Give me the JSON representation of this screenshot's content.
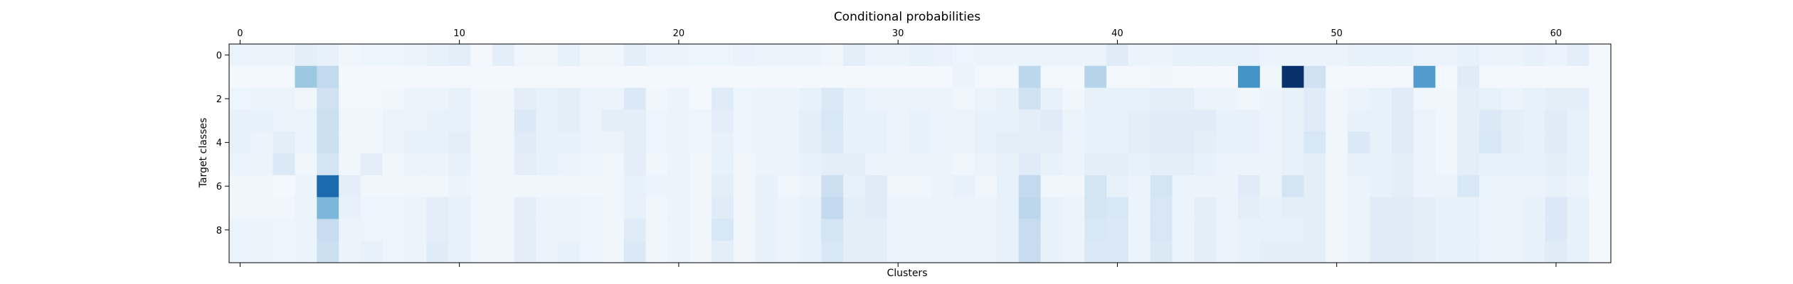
{
  "chart_data": {
    "type": "heatmap",
    "title": "Conditional probabilities",
    "xlabel": "Clusters",
    "ylabel": "Target classes",
    "n_rows": 10,
    "n_cols": 63,
    "x_ticks": [
      0,
      10,
      20,
      30,
      40,
      50,
      60
    ],
    "y_ticks": [
      0,
      2,
      4,
      6,
      8
    ],
    "x_tick_position": "top",
    "colormap": "Blues",
    "value_range": [
      0,
      1
    ],
    "grid": false,
    "values": [
      [
        0.06,
        0.06,
        0.06,
        0.1,
        0.08,
        0.04,
        0.05,
        0.05,
        0.06,
        0.08,
        0.1,
        0.03,
        0.1,
        0.04,
        0.04,
        0.08,
        0.04,
        0.04,
        0.1,
        0.06,
        0.06,
        0.05,
        0.05,
        0.07,
        0.06,
        0.06,
        0.06,
        0.04,
        0.1,
        0.06,
        0.06,
        0.08,
        0.07,
        0.05,
        0.06,
        0.06,
        0.06,
        0.06,
        0.06,
        0.06,
        0.12,
        0.06,
        0.06,
        0.08,
        0.08,
        0.08,
        0.08,
        0.06,
        0.06,
        0.06,
        0.06,
        0.08,
        0.08,
        0.08,
        0.06,
        0.06,
        0.08,
        0.06,
        0.06,
        0.08,
        0.06,
        0.1,
        0.02
      ],
      [
        0.02,
        0.02,
        0.02,
        0.38,
        0.26,
        0.02,
        0.02,
        0.02,
        0.02,
        0.02,
        0.02,
        0.02,
        0.02,
        0.02,
        0.02,
        0.02,
        0.02,
        0.02,
        0.02,
        0.02,
        0.02,
        0.02,
        0.02,
        0.02,
        0.02,
        0.02,
        0.02,
        0.02,
        0.02,
        0.02,
        0.02,
        0.02,
        0.02,
        0.06,
        0.02,
        0.02,
        0.28,
        0.02,
        0.02,
        0.3,
        0.02,
        0.02,
        0.04,
        0.02,
        0.02,
        0.02,
        0.62,
        0.04,
        1.0,
        0.2,
        0.02,
        0.02,
        0.02,
        0.02,
        0.58,
        0.02,
        0.12,
        0.02,
        0.02,
        0.02,
        0.02,
        0.02,
        0.02
      ],
      [
        0.05,
        0.06,
        0.06,
        0.04,
        0.2,
        0.03,
        0.03,
        0.04,
        0.06,
        0.06,
        0.08,
        0.04,
        0.04,
        0.1,
        0.08,
        0.1,
        0.06,
        0.06,
        0.14,
        0.04,
        0.06,
        0.02,
        0.12,
        0.05,
        0.06,
        0.06,
        0.08,
        0.14,
        0.08,
        0.06,
        0.06,
        0.06,
        0.06,
        0.04,
        0.06,
        0.08,
        0.2,
        0.08,
        0.04,
        0.08,
        0.08,
        0.08,
        0.1,
        0.1,
        0.06,
        0.06,
        0.04,
        0.06,
        0.08,
        0.12,
        0.04,
        0.06,
        0.08,
        0.12,
        0.04,
        0.04,
        0.1,
        0.08,
        0.06,
        0.08,
        0.1,
        0.1,
        0.02
      ],
      [
        0.08,
        0.08,
        0.06,
        0.06,
        0.22,
        0.04,
        0.04,
        0.06,
        0.06,
        0.08,
        0.08,
        0.04,
        0.04,
        0.14,
        0.08,
        0.1,
        0.06,
        0.1,
        0.1,
        0.05,
        0.06,
        0.05,
        0.1,
        0.05,
        0.06,
        0.06,
        0.1,
        0.16,
        0.08,
        0.08,
        0.06,
        0.08,
        0.06,
        0.06,
        0.08,
        0.08,
        0.1,
        0.12,
        0.06,
        0.08,
        0.08,
        0.1,
        0.12,
        0.12,
        0.12,
        0.08,
        0.08,
        0.06,
        0.08,
        0.12,
        0.04,
        0.08,
        0.08,
        0.12,
        0.06,
        0.04,
        0.1,
        0.14,
        0.1,
        0.08,
        0.12,
        0.08,
        0.02
      ],
      [
        0.08,
        0.06,
        0.1,
        0.06,
        0.22,
        0.04,
        0.04,
        0.06,
        0.08,
        0.08,
        0.1,
        0.04,
        0.04,
        0.12,
        0.08,
        0.08,
        0.06,
        0.06,
        0.1,
        0.05,
        0.06,
        0.05,
        0.08,
        0.05,
        0.06,
        0.06,
        0.1,
        0.14,
        0.08,
        0.08,
        0.06,
        0.08,
        0.06,
        0.06,
        0.08,
        0.1,
        0.1,
        0.1,
        0.06,
        0.08,
        0.08,
        0.1,
        0.12,
        0.12,
        0.1,
        0.08,
        0.08,
        0.06,
        0.08,
        0.16,
        0.04,
        0.14,
        0.08,
        0.12,
        0.06,
        0.04,
        0.1,
        0.16,
        0.1,
        0.08,
        0.12,
        0.08,
        0.02
      ],
      [
        0.06,
        0.06,
        0.14,
        0.04,
        0.18,
        0.04,
        0.1,
        0.04,
        0.06,
        0.06,
        0.08,
        0.04,
        0.04,
        0.1,
        0.08,
        0.06,
        0.05,
        0.04,
        0.1,
        0.04,
        0.06,
        0.04,
        0.08,
        0.04,
        0.06,
        0.06,
        0.08,
        0.1,
        0.1,
        0.06,
        0.06,
        0.06,
        0.06,
        0.04,
        0.06,
        0.08,
        0.12,
        0.08,
        0.06,
        0.1,
        0.1,
        0.08,
        0.1,
        0.1,
        0.08,
        0.06,
        0.06,
        0.06,
        0.08,
        0.1,
        0.04,
        0.08,
        0.08,
        0.1,
        0.06,
        0.04,
        0.1,
        0.08,
        0.08,
        0.08,
        0.1,
        0.08,
        0.02
      ],
      [
        0.04,
        0.04,
        0.02,
        0.06,
        0.78,
        0.1,
        0.04,
        0.04,
        0.04,
        0.04,
        0.06,
        0.04,
        0.04,
        0.04,
        0.04,
        0.04,
        0.04,
        0.04,
        0.08,
        0.06,
        0.06,
        0.04,
        0.1,
        0.04,
        0.08,
        0.04,
        0.06,
        0.22,
        0.08,
        0.12,
        0.04,
        0.04,
        0.06,
        0.08,
        0.04,
        0.08,
        0.26,
        0.04,
        0.04,
        0.18,
        0.08,
        0.06,
        0.18,
        0.06,
        0.06,
        0.06,
        0.12,
        0.06,
        0.18,
        0.1,
        0.04,
        0.06,
        0.08,
        0.1,
        0.06,
        0.06,
        0.16,
        0.06,
        0.06,
        0.06,
        0.08,
        0.06,
        0.02
      ],
      [
        0.04,
        0.04,
        0.04,
        0.06,
        0.46,
        0.08,
        0.05,
        0.05,
        0.06,
        0.1,
        0.08,
        0.04,
        0.04,
        0.1,
        0.06,
        0.06,
        0.05,
        0.04,
        0.08,
        0.04,
        0.06,
        0.04,
        0.12,
        0.04,
        0.08,
        0.06,
        0.08,
        0.26,
        0.1,
        0.12,
        0.06,
        0.06,
        0.06,
        0.06,
        0.06,
        0.08,
        0.28,
        0.08,
        0.06,
        0.18,
        0.16,
        0.06,
        0.16,
        0.06,
        0.1,
        0.06,
        0.1,
        0.08,
        0.1,
        0.1,
        0.04,
        0.06,
        0.12,
        0.12,
        0.1,
        0.08,
        0.08,
        0.06,
        0.06,
        0.08,
        0.14,
        0.08,
        0.02
      ],
      [
        0.06,
        0.06,
        0.05,
        0.06,
        0.24,
        0.06,
        0.05,
        0.05,
        0.06,
        0.1,
        0.08,
        0.04,
        0.04,
        0.1,
        0.06,
        0.06,
        0.05,
        0.04,
        0.12,
        0.04,
        0.06,
        0.04,
        0.16,
        0.04,
        0.08,
        0.06,
        0.08,
        0.18,
        0.1,
        0.1,
        0.06,
        0.06,
        0.06,
        0.06,
        0.06,
        0.08,
        0.24,
        0.08,
        0.06,
        0.16,
        0.14,
        0.06,
        0.16,
        0.06,
        0.1,
        0.06,
        0.08,
        0.08,
        0.08,
        0.1,
        0.04,
        0.06,
        0.12,
        0.12,
        0.1,
        0.08,
        0.08,
        0.06,
        0.06,
        0.08,
        0.14,
        0.08,
        0.02
      ],
      [
        0.06,
        0.06,
        0.05,
        0.06,
        0.22,
        0.06,
        0.08,
        0.05,
        0.06,
        0.12,
        0.08,
        0.04,
        0.04,
        0.1,
        0.06,
        0.08,
        0.05,
        0.04,
        0.14,
        0.04,
        0.06,
        0.04,
        0.1,
        0.04,
        0.08,
        0.06,
        0.08,
        0.16,
        0.1,
        0.1,
        0.06,
        0.06,
        0.06,
        0.06,
        0.06,
        0.08,
        0.24,
        0.08,
        0.06,
        0.14,
        0.14,
        0.06,
        0.14,
        0.06,
        0.1,
        0.06,
        0.08,
        0.1,
        0.1,
        0.1,
        0.04,
        0.06,
        0.12,
        0.12,
        0.1,
        0.08,
        0.08,
        0.06,
        0.06,
        0.08,
        0.12,
        0.08,
        0.02
      ]
    ]
  }
}
